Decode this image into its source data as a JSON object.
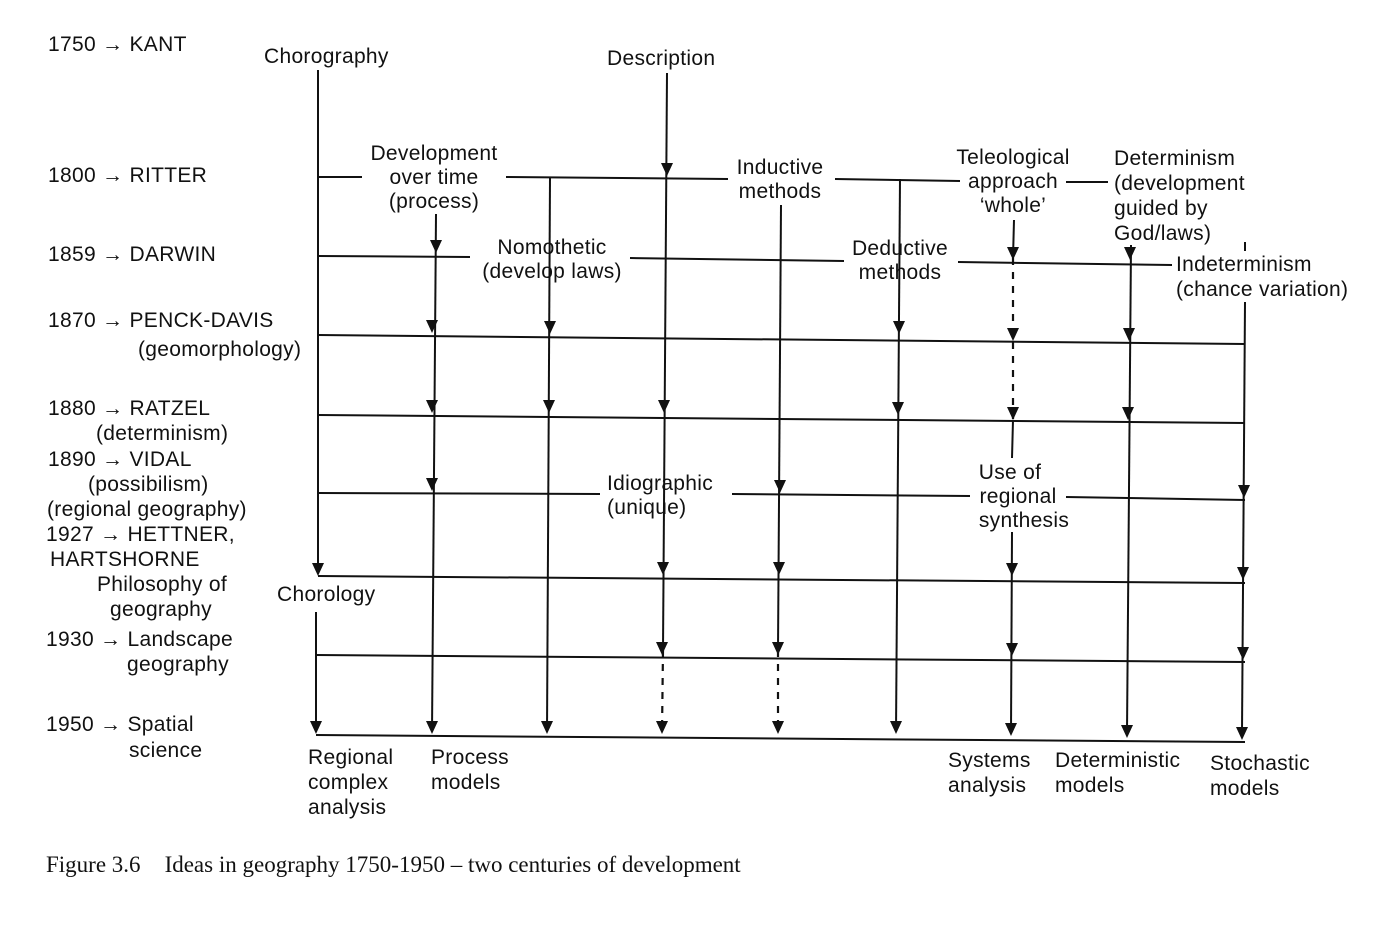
{
  "timeline": [
    [
      "1750 → KANT"
    ],
    [
      "1800 → RITTER"
    ],
    [
      "1859 → DARWIN"
    ],
    [
      "1870 →  PENCK-DAVIS",
      "(geomorphology)"
    ],
    [
      "1880 → RATZEL",
      "(determinism)"
    ],
    [
      "1890 → VIDAL",
      "(possibilism)",
      "(regional geography)"
    ],
    [
      "1927 → HETTNER,",
      "HARTSHORNE",
      "Philosophy of",
      "geography"
    ],
    [
      "1930 → Landscape",
      "geography"
    ],
    [
      "1950 → Spatial",
      "science"
    ]
  ],
  "concepts": {
    "chorography": [
      "Chorography"
    ],
    "description": [
      "Description"
    ],
    "development": [
      "Development",
      "over time",
      "(process)"
    ],
    "inductive": [
      "Inductive",
      "methods"
    ],
    "teleological": [
      "Teleological",
      "approach",
      "‘whole’"
    ],
    "determinism": [
      "Determinism",
      "(development",
      "guided by",
      "God/laws)"
    ],
    "nomothetic": [
      "Nomothetic",
      "(develop  laws)"
    ],
    "deductive": [
      "Deductive",
      "methods"
    ],
    "indeterminism": [
      "Indeterminism",
      "(chance variation)"
    ],
    "idiographic": [
      "Idiographic",
      "(unique)"
    ],
    "regional_synthesis": [
      "Use of",
      "regional",
      "synthesis"
    ],
    "chorology": [
      "Chorology"
    ]
  },
  "outcomes": {
    "regional_complex": [
      "Regional",
      "complex",
      "analysis"
    ],
    "process_models": [
      "Process",
      "models"
    ],
    "systems_analysis": [
      "Systems",
      "analysis"
    ],
    "deterministic_models": [
      "Deterministic",
      "models"
    ],
    "stochastic_models": [
      "Stochastic",
      "models"
    ]
  },
  "caption": {
    "label": "Figure 3.6",
    "text": "Ideas in geography 1750-1950 – two centuries of development"
  }
}
